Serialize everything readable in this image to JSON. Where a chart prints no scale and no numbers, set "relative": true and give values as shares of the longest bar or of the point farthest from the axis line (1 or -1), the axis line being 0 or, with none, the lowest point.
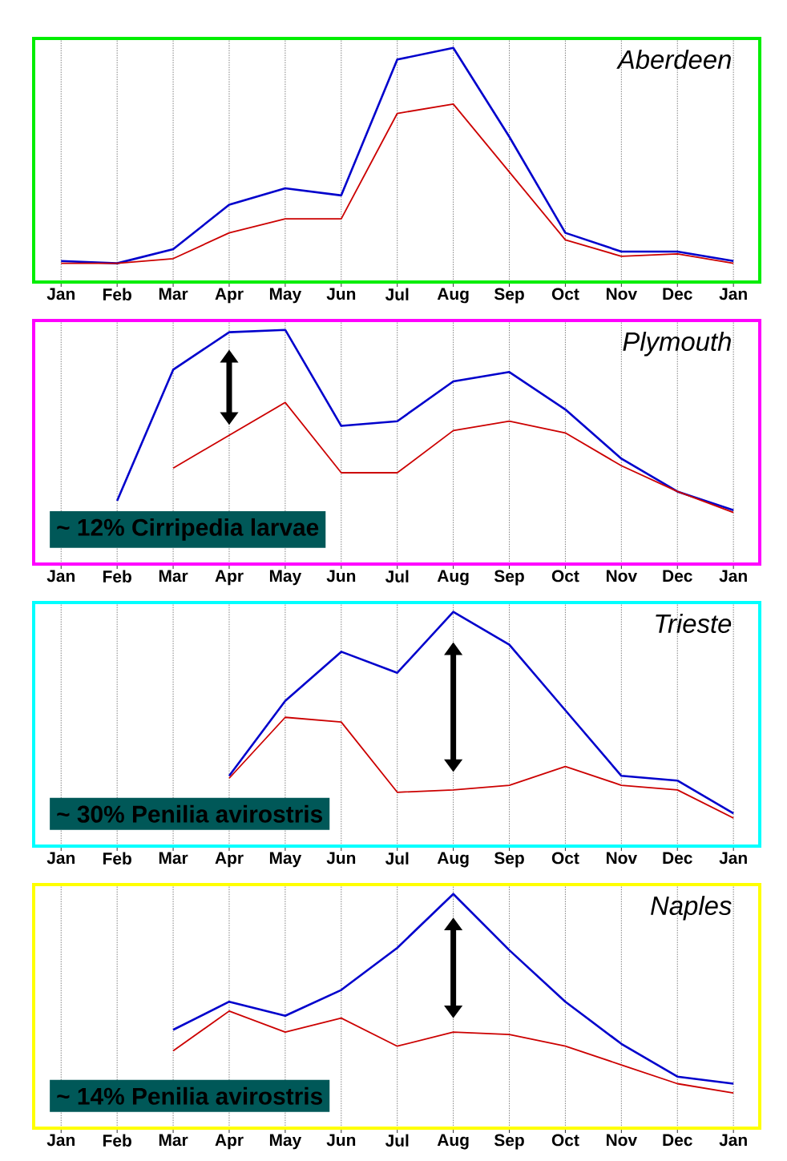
{
  "chart_data": [
    {
      "type": "line",
      "title": "Aberdeen",
      "relative": true,
      "grid": "x",
      "categories": [
        "Jan",
        "Feb",
        "Mar",
        "Apr",
        "May",
        "Jun",
        "Jul",
        "Aug",
        "Sep",
        "Oct",
        "Nov",
        "Dec",
        "Jan"
      ],
      "series": [
        {
          "color": "#0000cc",
          "values": [
            0.09,
            0.08,
            0.14,
            0.33,
            0.4,
            0.37,
            0.95,
            1.0,
            0.62,
            0.21,
            0.13,
            0.13,
            0.09
          ]
        },
        {
          "color": "#cc0000",
          "values": [
            0.08,
            0.08,
            0.1,
            0.21,
            0.27,
            0.27,
            0.72,
            0.76,
            0.47,
            0.18,
            0.11,
            0.12,
            0.08
          ]
        }
      ]
    },
    {
      "type": "line",
      "title": "Plymouth",
      "relative": true,
      "grid": "x",
      "categories": [
        "Jan",
        "Feb",
        "Mar",
        "Apr",
        "May",
        "Jun",
        "Jul",
        "Aug",
        "Sep",
        "Oct",
        "Nov",
        "Dec",
        "Jan"
      ],
      "annotations": [
        "~ 12% Cirripedia larvae"
      ],
      "series": [
        {
          "color": "#0000cc",
          "values": [
            null,
            0.27,
            0.83,
            0.99,
            1.0,
            0.59,
            0.61,
            0.78,
            0.82,
            0.66,
            0.45,
            0.31,
            0.23
          ]
        },
        {
          "color": "#cc0000",
          "values": [
            null,
            null,
            0.41,
            0.55,
            0.69,
            0.39,
            0.39,
            0.57,
            0.61,
            0.56,
            0.42,
            0.31,
            0.22
          ]
        }
      ]
    },
    {
      "type": "line",
      "title": "Trieste",
      "relative": true,
      "grid": "x",
      "categories": [
        "Jan",
        "Feb",
        "Mar",
        "Apr",
        "May",
        "Jun",
        "Jul",
        "Aug",
        "Sep",
        "Oct",
        "Nov",
        "Dec",
        "Jan"
      ],
      "annotations": [
        "~ 30% Penilia avirostris"
      ],
      "series": [
        {
          "color": "#0000cc",
          "values": [
            null,
            null,
            null,
            0.3,
            0.62,
            0.83,
            0.74,
            1.0,
            0.86,
            0.58,
            0.3,
            0.28,
            0.14
          ]
        },
        {
          "color": "#cc0000",
          "values": [
            null,
            null,
            null,
            0.29,
            0.55,
            0.53,
            0.23,
            0.24,
            0.26,
            0.34,
            0.26,
            0.24,
            0.12
          ]
        }
      ]
    },
    {
      "type": "line",
      "title": "Naples",
      "relative": true,
      "grid": "x",
      "categories": [
        "Jan",
        "Feb",
        "Mar",
        "Apr",
        "May",
        "Jun",
        "Jul",
        "Aug",
        "Sep",
        "Oct",
        "Nov",
        "Dec",
        "Jan"
      ],
      "annotations": [
        "~ 14% Penilia avirostris"
      ],
      "series": [
        {
          "color": "#0000cc",
          "values": [
            null,
            null,
            0.42,
            0.54,
            0.48,
            0.59,
            0.77,
            1.0,
            0.76,
            0.54,
            0.36,
            0.22,
            0.19
          ]
        },
        {
          "color": "#cc0000",
          "values": [
            null,
            null,
            0.33,
            0.5,
            0.41,
            0.47,
            0.35,
            0.41,
            0.4,
            0.35,
            0.27,
            0.19,
            0.15
          ]
        }
      ]
    }
  ]
}
